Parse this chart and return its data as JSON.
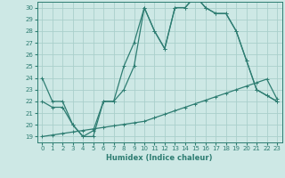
{
  "xlabel": "Humidex (Indice chaleur)",
  "xlim": [
    -0.5,
    23.5
  ],
  "ylim": [
    18.5,
    30.5
  ],
  "xticks": [
    0,
    1,
    2,
    3,
    4,
    5,
    6,
    7,
    8,
    9,
    10,
    11,
    12,
    13,
    14,
    15,
    16,
    17,
    18,
    19,
    20,
    21,
    22,
    23
  ],
  "yticks": [
    19,
    20,
    21,
    22,
    23,
    24,
    25,
    26,
    27,
    28,
    29,
    30
  ],
  "background_color": "#cde8e5",
  "grid_color": "#aacfcb",
  "line_color": "#2e7d72",
  "line1_x": [
    0,
    1,
    2,
    3,
    4,
    5,
    6,
    7,
    8,
    9,
    10,
    11,
    12,
    13,
    14,
    15,
    16,
    17,
    18,
    19,
    20,
    21,
    22,
    23
  ],
  "line1_y": [
    24,
    22,
    22,
    20,
    19,
    19,
    22,
    22,
    25,
    27,
    30,
    28,
    26.5,
    30,
    30,
    31,
    30,
    29.5,
    29.5,
    28,
    25.5,
    23,
    22.5,
    22
  ],
  "line2_x": [
    0,
    1,
    2,
    3,
    4,
    5,
    6,
    7,
    8,
    9,
    10,
    11,
    12,
    13,
    14,
    15,
    16,
    17,
    18,
    19,
    20,
    21,
    22,
    23
  ],
  "line2_y": [
    22,
    21.5,
    21.5,
    20,
    19,
    19.5,
    22,
    22,
    23,
    25,
    30,
    28,
    26.5,
    30,
    30,
    31,
    30,
    29.5,
    29.5,
    28,
    25.5,
    23,
    22.5,
    22
  ],
  "line3_x": [
    0,
    1,
    2,
    3,
    4,
    5,
    6,
    7,
    8,
    9,
    10,
    11,
    12,
    13,
    14,
    15,
    16,
    17,
    18,
    19,
    20,
    21,
    22,
    23
  ],
  "line3_y": [
    19.0,
    19.13,
    19.26,
    19.39,
    19.52,
    19.65,
    19.78,
    19.91,
    20.04,
    20.17,
    20.3,
    20.6,
    20.9,
    21.2,
    21.5,
    21.8,
    22.1,
    22.4,
    22.7,
    23.0,
    23.3,
    23.6,
    23.9,
    22.2
  ]
}
